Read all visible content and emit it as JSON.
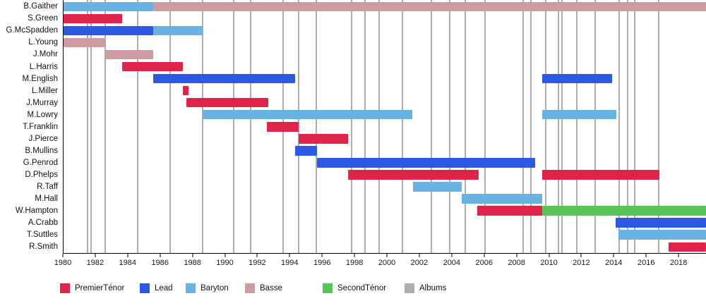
{
  "colors": {
    "PremierTénor": "#e0234a",
    "Lead": "#2c59e3",
    "Baryton": "#68b2e4",
    "Basse": "#cd9ba0",
    "SecondTénor": "#58c45a",
    "Albums": "#aeaeae",
    "axis": "#000000"
  },
  "legend": [
    "PremierTénor",
    "Lead",
    "Baryton",
    "Basse",
    "SecondTénor",
    "Albums"
  ],
  "chart_data": {
    "type": "bar",
    "subtype": "gantt-timeline",
    "title": "",
    "xlabel": "",
    "ylabel": "",
    "grid": "off",
    "legend_position": "bottom",
    "x_axis": {
      "min": 1980,
      "max": 2019.65,
      "ticks": [
        1980,
        1982,
        1984,
        1986,
        1988,
        1990,
        1992,
        1994,
        1996,
        1998,
        2000,
        2002,
        2004,
        2006,
        2008,
        2010,
        2012,
        2014,
        2016,
        2018
      ]
    },
    "rows": [
      {
        "name": "B.Gaither",
        "segments": [
          {
            "role": "Baryton",
            "start": 1980,
            "end": 1985.52
          },
          {
            "role": "Basse",
            "start": 1985.52,
            "end": 2019.65
          }
        ]
      },
      {
        "name": "S.Green",
        "segments": [
          {
            "role": "PremierTénor",
            "start": 1980,
            "end": 1983.6
          }
        ]
      },
      {
        "name": "G.McSpadden",
        "segments": [
          {
            "role": "Lead",
            "start": 1980,
            "end": 1985.52
          },
          {
            "role": "Baryton",
            "start": 1985.52,
            "end": 1988.6
          }
        ]
      },
      {
        "name": "L.Young",
        "segments": [
          {
            "role": "Basse",
            "start": 1980,
            "end": 1982.51
          }
        ]
      },
      {
        "name": "J.Mohr",
        "segments": [
          {
            "role": "Basse",
            "start": 1982.58,
            "end": 1985.55
          }
        ]
      },
      {
        "name": "L.Harris",
        "segments": [
          {
            "role": "PremierTénor",
            "start": 1983.6,
            "end": 1987.36
          }
        ]
      },
      {
        "name": "M.English",
        "segments": [
          {
            "role": "Lead",
            "start": 1985.52,
            "end": 1994.29
          },
          {
            "role": "Lead",
            "start": 2009.55,
            "end": 2013.86
          }
        ]
      },
      {
        "name": "L.Miller",
        "segments": [
          {
            "role": "PremierTénor",
            "start": 1987.36,
            "end": 1987.73
          }
        ]
      },
      {
        "name": "J.Murray",
        "segments": [
          {
            "role": "PremierTénor",
            "start": 1987.58,
            "end": 1992.62
          }
        ]
      },
      {
        "name": "M.Lowry",
        "segments": [
          {
            "role": "Baryton",
            "start": 1988.6,
            "end": 2001.53
          },
          {
            "role": "Baryton",
            "start": 2009.55,
            "end": 2014.1
          }
        ]
      },
      {
        "name": "T.Franklin",
        "segments": [
          {
            "role": "PremierTénor",
            "start": 1992.55,
            "end": 1994.51
          }
        ]
      },
      {
        "name": "J.Pierce",
        "segments": [
          {
            "role": "PremierTénor",
            "start": 1994.53,
            "end": 1997.58
          }
        ]
      },
      {
        "name": "B.Mullins",
        "segments": [
          {
            "role": "Lead",
            "start": 1994.29,
            "end": 1995.66
          }
        ]
      },
      {
        "name": "G.Penrod",
        "segments": [
          {
            "role": "Lead",
            "start": 1995.66,
            "end": 2009.1
          }
        ]
      },
      {
        "name": "D.Phelps",
        "segments": [
          {
            "role": "PremierTénor",
            "start": 1997.58,
            "end": 2005.6
          },
          {
            "role": "PremierTénor",
            "start": 2009.55,
            "end": 2016.79
          }
        ]
      },
      {
        "name": "R.Taff",
        "segments": [
          {
            "role": "Baryton",
            "start": 2001.57,
            "end": 2004.58
          }
        ]
      },
      {
        "name": "M.Hall",
        "segments": [
          {
            "role": "Baryton",
            "start": 2004.58,
            "end": 2009.55
          }
        ]
      },
      {
        "name": "W.Hampton",
        "segments": [
          {
            "role": "PremierTénor",
            "start": 2005.52,
            "end": 2009.55
          },
          {
            "role": "SecondTénor",
            "start": 2009.55,
            "end": 2019.65
          }
        ]
      },
      {
        "name": "A.Crabb",
        "segments": [
          {
            "role": "Lead",
            "start": 2014.07,
            "end": 2019.65
          }
        ]
      },
      {
        "name": "T.Suttles",
        "segments": [
          {
            "role": "Baryton",
            "start": 2014.26,
            "end": 2019.65
          }
        ]
      },
      {
        "name": "R.Smith",
        "segments": [
          {
            "role": "PremierTénor",
            "start": 2017.35,
            "end": 2019.65
          }
        ]
      }
    ],
    "albums": [
      1981.49,
      1981.68,
      1982.58,
      1984.58,
      1986.57,
      1988.57,
      1990.52,
      1991.53,
      1993.57,
      1994.53,
      1995.6,
      1997.77,
      1998.6,
      1999.47,
      2000.91,
      2002.7,
      2003.85,
      2004.8,
      2006.03,
      2008.38,
      2008.83,
      2009.77,
      2010.55,
      2010.74,
      2011.68,
      2012.8,
      2014.29,
      2014.83,
      2015.27,
      2016.75
    ]
  }
}
